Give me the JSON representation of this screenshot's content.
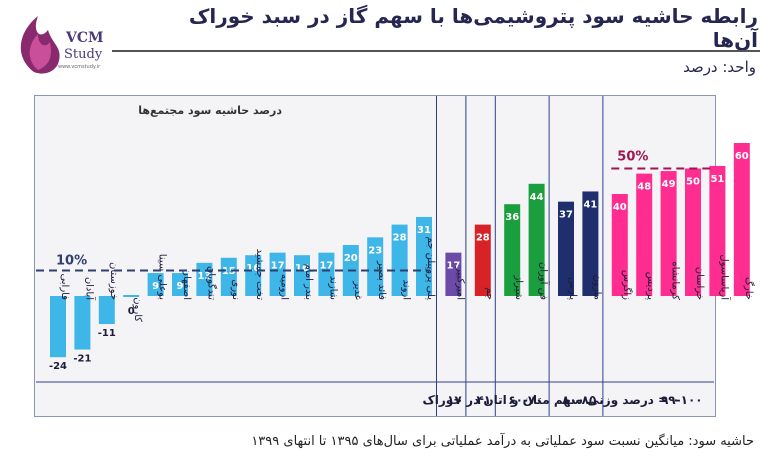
{
  "header": {
    "title": "رابطه حاشیه سود پتروشیمی‌ها با سهم گاز در سبد خوراک آن‌ها",
    "unit_label": "واحد: درصد",
    "logo_text_top": "VCM",
    "logo_text_bottom": "Study",
    "logo_url_text": "www.vcmstudy.ir"
  },
  "footnote": "حاشیه سود: میانگین نسبت سود عملیاتی به درآمد عملیاتی برای سال‌های ۱۳۹۵ تا انتهای ۱۳۹۹",
  "colors": {
    "group0": "#3fb6e8",
    "group17": "#6b4aa8",
    "group41": "#d72328",
    "group60_70": "#1b9e3e",
    "group80_85": "#1f2f6e",
    "group100": "#ff2d8f",
    "ref_line": "#2f3f6f",
    "ref_line_50": "#a01550",
    "divider": "#2f3f8f"
  },
  "chart_data": {
    "type": "bar",
    "y_title": "درصد حاشیه سود مجتمع‌ها",
    "xlabel": "",
    "ylabel": "",
    "ylim": [
      -25,
      65
    ],
    "reference_lines": [
      {
        "value": 10,
        "label": "10%"
      },
      {
        "value": 50,
        "label": "50%"
      }
    ],
    "categories": [
      "فارابی",
      "آبادان",
      "خوزستان",
      "کارون",
      "بوعلی سینا",
      "اصفهان",
      "تندگویان",
      "نوری",
      "تخت جمشید",
      "ارومیه",
      "بندر امام",
      "شازند",
      "غدیر",
      "فائد بصیر",
      "اروند",
      "پلی پروپیلن جم",
      "امیرکبیر",
      "جم",
      "شیراز",
      "فن آوران",
      "پارس",
      "مارون",
      "زاگرس",
      "پردیس",
      "کرمانشاه",
      "خراسان",
      "آریاساسول",
      "خارگ"
    ],
    "values": [
      -24,
      -21,
      -11,
      0,
      9,
      9,
      13,
      15,
      16,
      17,
      16,
      17,
      20,
      23,
      28,
      31,
      17,
      28,
      36,
      44,
      37,
      41,
      40,
      48,
      49,
      50,
      51,
      60
    ],
    "groups": [
      {
        "label": "۰ = درصد وزنی سهم متان و اتان در خوراک",
        "count": 16,
        "color_key": "group0"
      },
      {
        "label": "۱۷",
        "count": 1,
        "color_key": "group17"
      },
      {
        "label": "۴۱",
        "count": 1,
        "color_key": "group41"
      },
      {
        "label": "۶۰-۷۰",
        "count": 2,
        "color_key": "group60_70"
      },
      {
        "label": "۸۰-۸۵",
        "count": 2,
        "color_key": "group80_85"
      },
      {
        "label": "۹۹-۱۰۰",
        "count": 6,
        "color_key": "group100"
      }
    ]
  }
}
